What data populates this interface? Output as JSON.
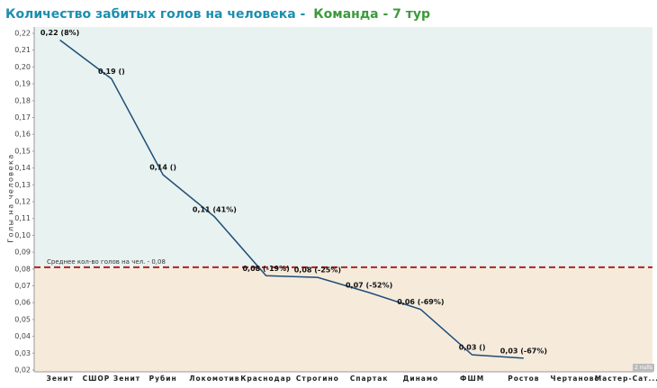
{
  "chart_data": {
    "type": "line",
    "title": "Количество забитых голов на человека -",
    "subtitle": "Команда - 7 тур",
    "y_label": "Голы на человека",
    "categories": [
      "Зенит",
      "СШОР Зенит",
      "Рубин",
      "Локомотив",
      "Краснодар",
      "Строгино",
      "Спартак",
      "Динамо",
      "ФШМ",
      "Ростов",
      "Чертаново",
      "Мастер-Сат..."
    ],
    "values": [
      0.216,
      0.193,
      0.136,
      0.111,
      0.076,
      0.075,
      0.066,
      0.056,
      0.029,
      0.027,
      null,
      null
    ],
    "value_labels": [
      "0,22 (8%)",
      "0,19 ()",
      "0,14 ()",
      "0,11 (41%)",
      "0,08 (-19%)",
      "0,08 (-25%)",
      "0,07 (-52%)",
      "0,06 (-69%)",
      "0,03 ()",
      "0,03 (-67%)",
      null,
      null
    ],
    "color": "#1f4e79",
    "reference_line": {
      "value": 0.081,
      "label": "Среднее кол-во голов на чел. - 0,08",
      "color": "#b22222"
    },
    "band_above_color": "#e8f2f0",
    "band_below_color": "#f6ebdb",
    "null_note": "2 nulls",
    "ylim": [
      0.02,
      0.22
    ],
    "yticks": [
      {
        "value": 0.02,
        "label": "0,02"
      },
      {
        "value": 0.03,
        "label": "0,03"
      },
      {
        "value": 0.04,
        "label": "0,04"
      },
      {
        "value": 0.05,
        "label": "0,05"
      },
      {
        "value": 0.06,
        "label": "0,06"
      },
      {
        "value": 0.07,
        "label": "0,07"
      },
      {
        "value": 0.08,
        "label": "0,08"
      },
      {
        "value": 0.09,
        "label": "0,09"
      },
      {
        "value": 0.1,
        "label": "0,10"
      },
      {
        "value": 0.11,
        "label": "0,11"
      },
      {
        "value": 0.12,
        "label": "0,12"
      },
      {
        "value": 0.13,
        "label": "0,13"
      },
      {
        "value": 0.14,
        "label": "0,14"
      },
      {
        "value": 0.15,
        "label": "0,15"
      },
      {
        "value": 0.16,
        "label": "0,16"
      },
      {
        "value": 0.17,
        "label": "0,17"
      },
      {
        "value": 0.18,
        "label": "0,18"
      },
      {
        "value": 0.19,
        "label": "0,19"
      },
      {
        "value": 0.2,
        "label": "0,20"
      },
      {
        "value": 0.21,
        "label": "0,21"
      },
      {
        "value": 0.22,
        "label": "0,22"
      }
    ]
  }
}
